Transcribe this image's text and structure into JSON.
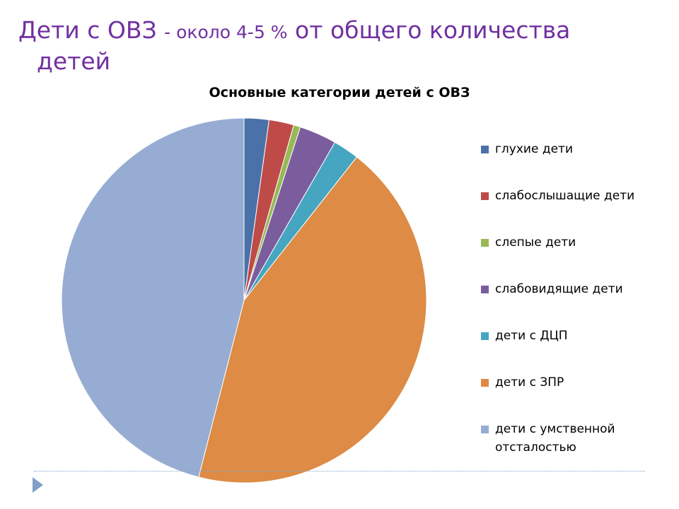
{
  "slide": {
    "title_line1_a": "Дети с ОВЗ ",
    "title_line1_b": "- около 4-5 %",
    "title_line1_c": " от общего количества",
    "title_line2": "детей"
  },
  "chart_data": {
    "type": "pie",
    "title": "Основные категории детей с ОВЗ",
    "legend_position": "right",
    "start_angle_deg": 0,
    "categories": [
      "глухие дети",
      "слабослышащие дети",
      "слепые дети",
      "слабовидящие дети",
      "дети с ДЦП",
      "дети с ЗПР",
      "дети с умственной отсталостью"
    ],
    "values": [
      2.2,
      2.2,
      0.6,
      3.3,
      2.3,
      43.4,
      46.0
    ],
    "colors": [
      "#4a72a8",
      "#be4b48",
      "#98b954",
      "#7b5d9e",
      "#46a5c0",
      "#dd8b45",
      "#97acd3"
    ]
  },
  "icons": {
    "nav": "triangle-right-icon"
  },
  "theme": {
    "title_color": "#7030a0",
    "accent": "#7f9fc8"
  }
}
